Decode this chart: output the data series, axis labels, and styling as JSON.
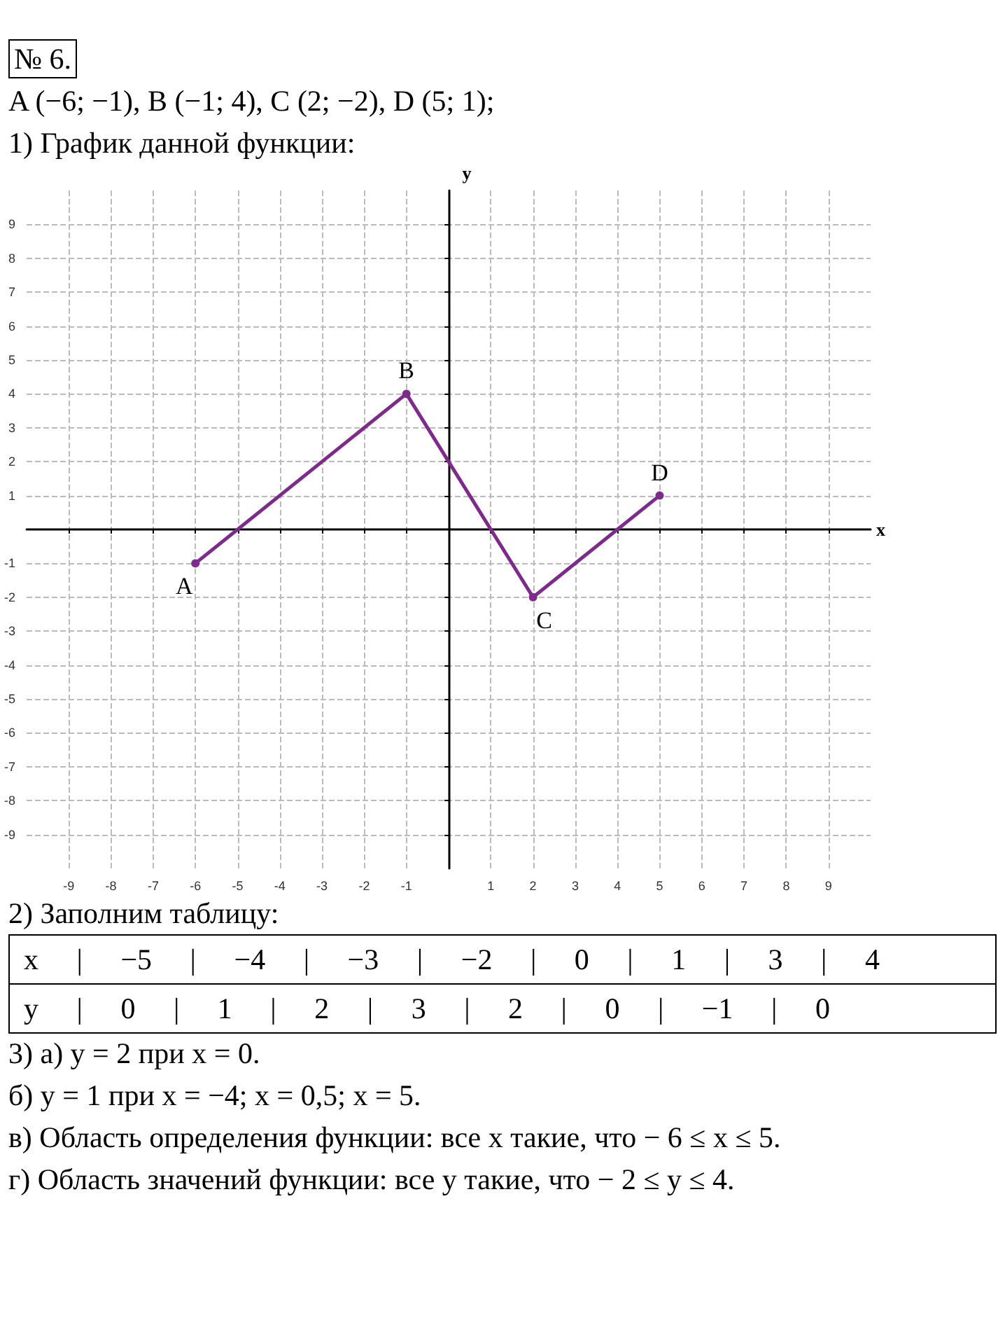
{
  "chart_data": {
    "type": "line",
    "title": "№ 6.",
    "subtitle": "A (−6; −1),   B (−1; 4),   C (2; −2),   D (5; 1);",
    "xlabel": "x",
    "ylabel": "y",
    "x": [
      -6,
      -1,
      2,
      5
    ],
    "series": [
      {
        "color": "#7d2a8c",
        "values": [
          -1,
          4,
          -2,
          1
        ]
      }
    ],
    "xlim": [
      -10,
      10
    ],
    "ylim": [
      -10,
      10
    ],
    "xticks": [
      -9,
      -8,
      -7,
      -6,
      -5,
      -4,
      -3,
      -2,
      -1,
      1,
      2,
      3,
      4,
      5,
      6,
      7,
      8,
      9
    ],
    "yticks": [
      -9,
      -8,
      -7,
      -6,
      -5,
      -4,
      -3,
      -2,
      -1,
      1,
      2,
      3,
      4,
      5,
      6,
      7,
      8,
      9
    ],
    "grid": true,
    "marker": "circle",
    "line_style": "solid",
    "annotations": [
      "1) График данной функции:",
      {
        "text": "A",
        "x": -6,
        "y": -1
      },
      {
        "text": "B",
        "x": -1,
        "y": 4
      },
      {
        "text": "C",
        "x": 2,
        "y": -2
      },
      {
        "text": "D",
        "x": 5,
        "y": 1
      },
      "2) Заполним таблицу:",
      "x | −5 | −4 | −3 | −2 | 0 | 1 | 3 | 4",
      "y | 0 | 1 | 2 | 3 | 2 | 0 | −1 | 0",
      "3) а) y = 2  при  x = 0.",
      "б) y = 1  при  x = −4;  x = 0,5;   x = 5.",
      "в) Область определения функции: все x такие, что  − 6 ≤ x ≤ 5.",
      "г) Область значений функции: все y такие, что  − 2 ≤ y ≤ 4."
    ]
  }
}
